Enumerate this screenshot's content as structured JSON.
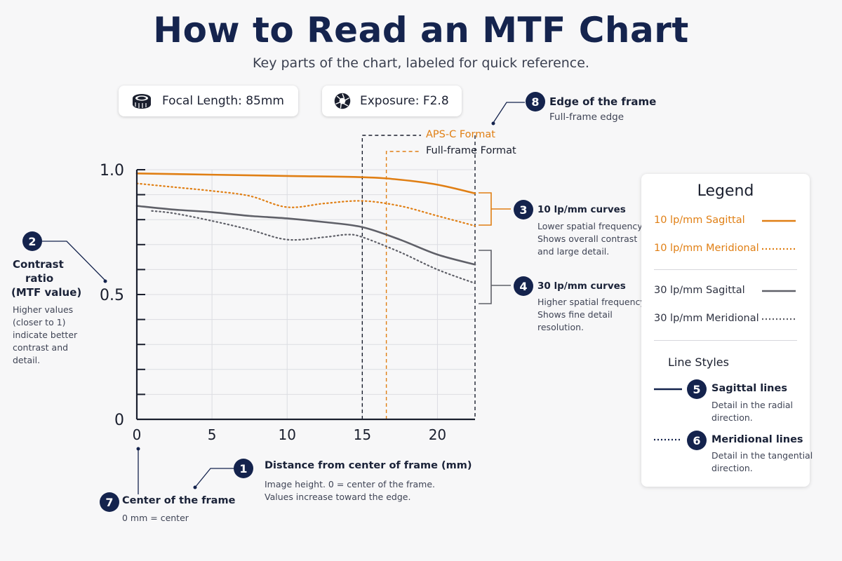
{
  "title": "How to Read an MTF Chart",
  "subtitle": "Key parts of the chart, labeled for quick reference.",
  "info": {
    "focal_length": "Focal Length: 85mm",
    "exposure": "Exposure: F2.8",
    "focal_icon": "lens-icon",
    "exposure_icon": "aperture-icon"
  },
  "format_labels": {
    "apsc": "APS-C Format",
    "fullframe": "Full-frame Format"
  },
  "callouts": {
    "c1": {
      "num": "1",
      "title": "Distance from center of frame (mm)",
      "desc1": "Image height. 0 = center of the frame.",
      "desc2": "Values increase toward the edge."
    },
    "c2": {
      "num": "2",
      "title1": "Contrast",
      "title2": "ratio",
      "title3": "(MTF value)",
      "desc1": "Higher values",
      "desc2": "(closer to 1)",
      "desc3": "indicate better",
      "desc4": "contrast and",
      "desc5": "detail."
    },
    "c3": {
      "num": "3",
      "title": "10 lp/mm curves",
      "desc1": "Lower spatial frequency.",
      "desc2": "Shows overall contrast",
      "desc3": "and large detail."
    },
    "c4": {
      "num": "4",
      "title": "30 lp/mm curves",
      "desc1": "Higher spatial frequency.",
      "desc2": "Shows fine detail",
      "desc3": "resolution."
    },
    "c7": {
      "num": "7",
      "title": "Center of the frame",
      "desc": "0 mm = center"
    },
    "c8": {
      "num": "8",
      "title": "Edge of the frame",
      "desc": "Full-frame edge"
    }
  },
  "legend": {
    "title": "Legend",
    "items": [
      "10 lp/mm Sagittal",
      "10 lp/mm Meridional",
      "30 lp/mm Sagittal",
      "30 lp/mm Meridional"
    ],
    "line_styles_title": "Line Styles",
    "sagittal": {
      "num": "5",
      "title": "Sagittal lines",
      "desc1": "Detail in the radial",
      "desc2": "direction."
    },
    "meridional": {
      "num": "6",
      "title": "Meridional lines",
      "desc1": "Detail in the tangential",
      "desc2": "direction."
    }
  },
  "colors": {
    "orange": "#e07f14",
    "gray": "#5f6068",
    "navy": "#14234d"
  },
  "chart_data": {
    "type": "line",
    "xlim": [
      0,
      22.5
    ],
    "ylim": [
      0,
      1.0
    ],
    "x_ticks": [
      0,
      5,
      10,
      15,
      20
    ],
    "x_tick_labels": [
      "0",
      "5",
      "10",
      "15",
      "20"
    ],
    "y_tick_labels": [
      {
        "value": 0,
        "label": "0"
      },
      {
        "value": 0.5,
        "label": "0.5"
      },
      {
        "value": 1.0,
        "label": "1.0"
      }
    ],
    "y_minor_ticks": [
      0.1,
      0.2,
      0.3,
      0.4,
      0.6,
      0.7,
      0.8,
      0.9
    ],
    "apsc_edge_x": 15,
    "fullframe_marker_x": 16.6,
    "fullframe_edge_x": 22.5,
    "series": [
      {
        "name": "10 lp/mm Sagittal",
        "color": "#e07f14",
        "dashed": false,
        "x": [
          0,
          5,
          10,
          15,
          17.5,
          20,
          22.5
        ],
        "y": [
          0.985,
          0.98,
          0.975,
          0.97,
          0.96,
          0.94,
          0.905
        ]
      },
      {
        "name": "10 lp/mm Meridional",
        "color": "#e07f14",
        "dashed": true,
        "x": [
          0,
          2.5,
          5,
          7.5,
          10,
          12.5,
          15,
          17.5,
          20,
          22.5
        ],
        "y": [
          0.945,
          0.93,
          0.915,
          0.895,
          0.85,
          0.865,
          0.875,
          0.855,
          0.815,
          0.775
        ]
      },
      {
        "name": "30 lp/mm Sagittal",
        "color": "#5f6068",
        "dashed": false,
        "x": [
          0,
          2.5,
          5,
          7.5,
          10,
          12.5,
          15,
          17.5,
          20,
          22.5
        ],
        "y": [
          0.855,
          0.84,
          0.83,
          0.815,
          0.805,
          0.79,
          0.77,
          0.72,
          0.66,
          0.62
        ]
      },
      {
        "name": "30 lp/mm Meridional",
        "color": "#5f6068",
        "dashed": true,
        "x": [
          1,
          2.5,
          5,
          7.5,
          10,
          12.5,
          14,
          15,
          17.5,
          20,
          22.5
        ],
        "y": [
          0.835,
          0.825,
          0.795,
          0.76,
          0.72,
          0.73,
          0.74,
          0.73,
          0.67,
          0.6,
          0.545
        ]
      }
    ]
  }
}
